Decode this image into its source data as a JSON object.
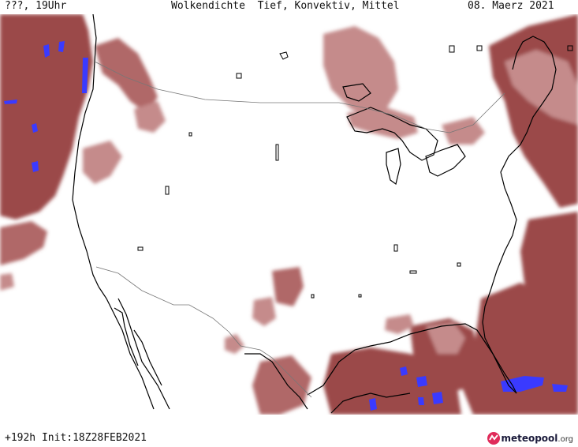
{
  "header": {
    "left": "???, 19Uhr",
    "center": "Wolkendichte  Tief, Konvektiv, Mittel",
    "right": "08. Maerz 2021"
  },
  "footer": {
    "left": "+192h Init:18Z28FEB2021",
    "logo_main": "meteopool",
    "logo_suffix": ".org"
  },
  "map": {
    "region": "North America",
    "cloud_color": "#9b4a4a",
    "cloud_light_color": "#c58b8b",
    "convection_color": "#3a3aff",
    "border_color": "#777777",
    "coast_color": "#000000",
    "icons": [
      "meteopool-logo-icon"
    ]
  }
}
